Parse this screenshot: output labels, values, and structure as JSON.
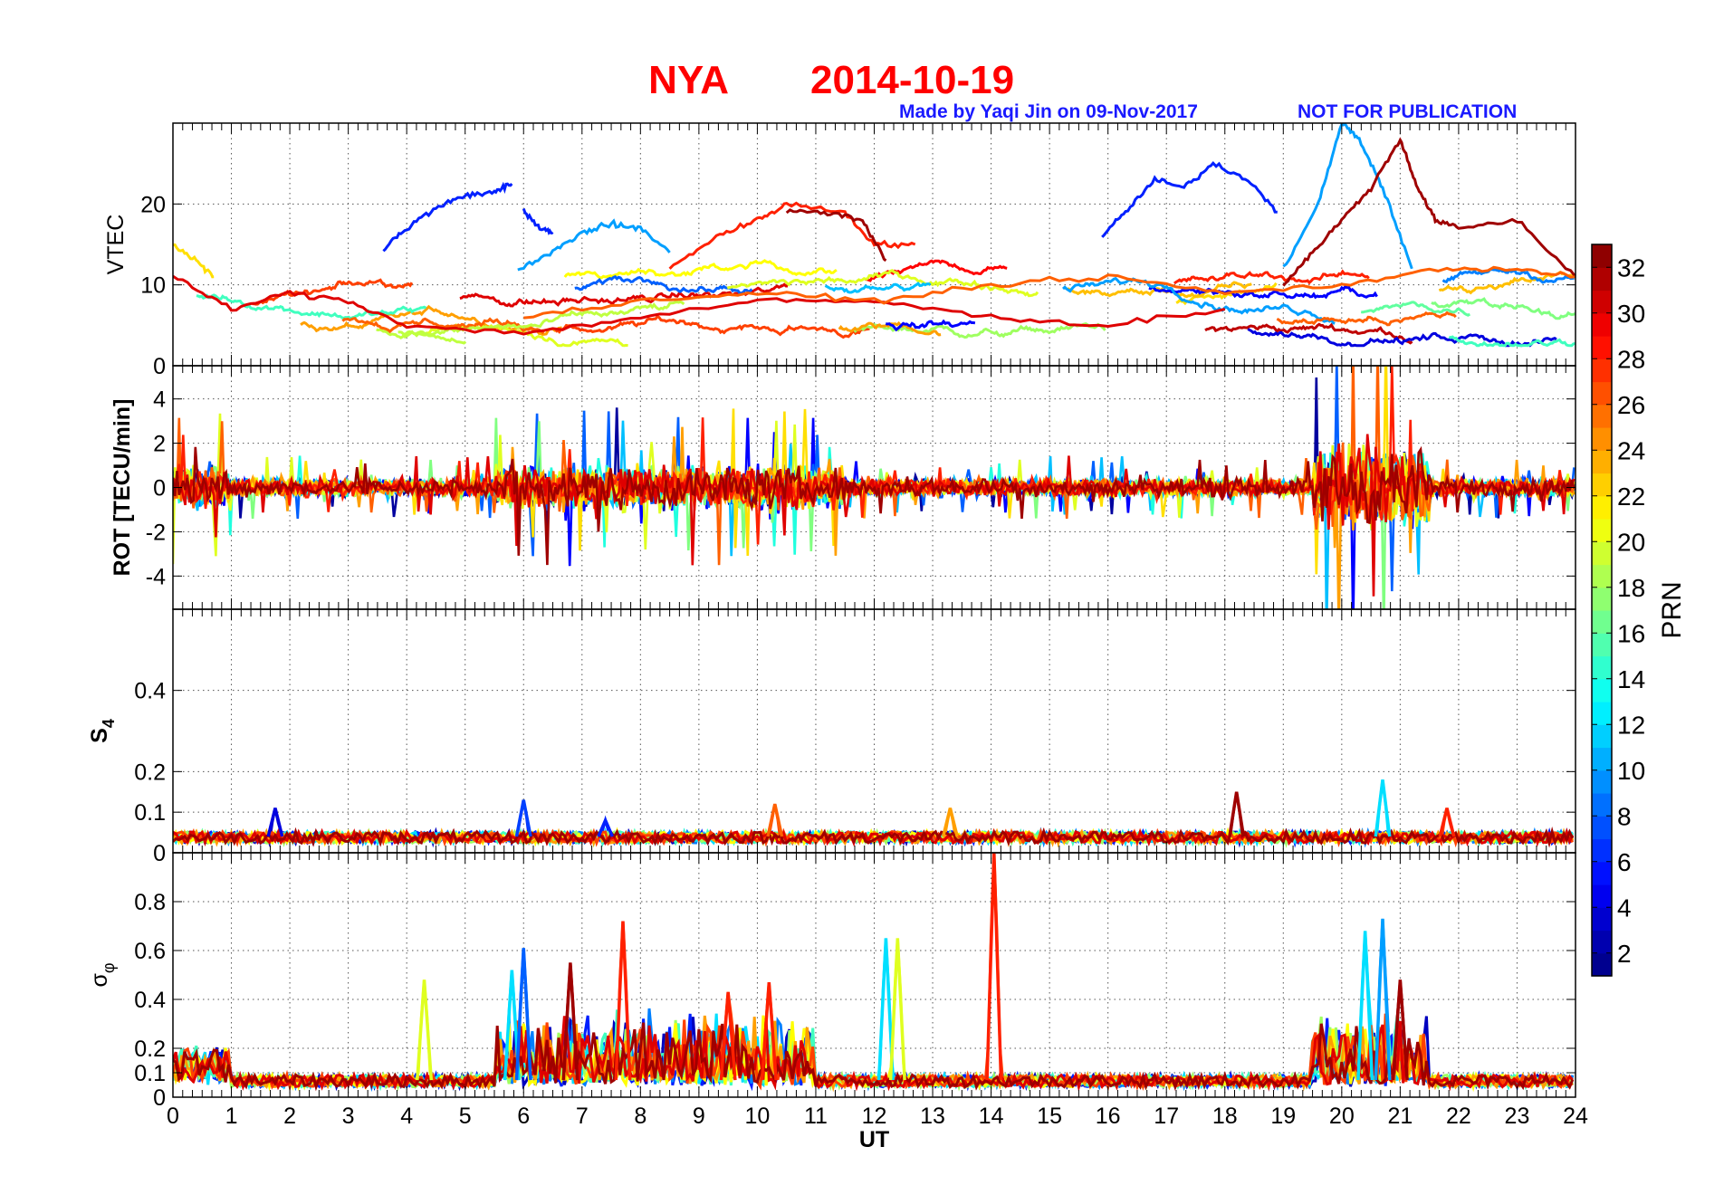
{
  "title": {
    "station": "NYA",
    "date": "2014-10-19",
    "color": "#ff0000"
  },
  "credit": {
    "made_by": "Made by Yaqi Jin on 09-Nov-2017",
    "notice": "NOT FOR PUBLICATION",
    "color": "#1a1aff"
  },
  "chart_data": [
    {
      "type": "line",
      "panel": "vtec",
      "ylabel": "VTEC",
      "xlim": [
        0,
        24
      ],
      "ylim": [
        0,
        30
      ],
      "yticks": [
        0,
        10,
        20
      ],
      "grid": true,
      "description_series": [
        {
          "prn": 6,
          "segments": [
            {
              "t": [
                3.6,
                4.0,
                4.5,
                5.0,
                5.5,
                5.8
              ],
              "v": [
                14.5,
                17,
                19.5,
                21,
                21.5,
                22.5
              ]
            },
            {
              "t": [
                6.0,
                6.3,
                6.5
              ],
              "v": [
                19,
                17,
                16.5
              ]
            }
          ]
        },
        {
          "prn": 6,
          "segments": [
            {
              "t": [
                15.9,
                16.3,
                16.8,
                17.3,
                17.8,
                18.4,
                18.9
              ],
              "v": [
                16,
                19,
                23,
                22,
                25,
                23,
                19
              ]
            }
          ]
        },
        {
          "prn": 10,
          "segments": [
            {
              "t": [
                5.9,
                6.5,
                7.0,
                7.5,
                8.0,
                8.5
              ],
              "v": [
                12,
                14,
                16.5,
                17.5,
                17,
                14
              ]
            }
          ]
        },
        {
          "prn": 10,
          "segments": [
            {
              "t": [
                19.0,
                19.6,
                20.0,
                20.3,
                20.7,
                21.2
              ],
              "v": [
                12,
                20,
                30,
                28,
                22,
                12
              ]
            }
          ]
        },
        {
          "prn": 28,
          "segments": [
            {
              "t": [
                8.5,
                9.3,
                10.0,
                10.5,
                11.5,
                12.0,
                12.7
              ],
              "v": [
                12,
                16,
                18,
                20,
                19,
                15,
                15
              ]
            }
          ]
        },
        {
          "prn": 32,
          "segments": [
            {
              "t": [
                10.5,
                11.2,
                11.8,
                12.2
              ],
              "v": [
                19,
                19,
                18,
                13
              ]
            }
          ]
        },
        {
          "prn": 32,
          "segments": [
            {
              "t": [
                19.0,
                19.5,
                20.0,
                20.5,
                21.0,
                21.3,
                21.6,
                22.0,
                23.0,
                24.0
              ],
              "v": [
                10,
                14,
                18,
                22,
                28,
                22,
                18,
                17,
                18,
                11
              ]
            }
          ]
        },
        {
          "prn": 22,
          "segments": [
            {
              "t": [
                0,
                0.4,
                0.7
              ],
              "v": [
                15,
                13,
                11
              ]
            }
          ]
        },
        {
          "prn": 30,
          "segments": [
            {
              "t": [
                0,
                1.0,
                2.0,
                3.0,
                4.0,
                6.0,
                8.0,
                10.0,
                12.0,
                14.0,
                16.0,
                18.0
              ],
              "v": [
                11,
                7,
                9,
                8,
                5,
                4,
                6,
                8,
                8,
                6,
                5,
                7
              ]
            }
          ]
        },
        {
          "prn": 26,
          "segments": [
            {
              "t": [
                6.0,
                8.0,
                10.0,
                12.0,
                14.0,
                16.0,
                18.0,
                20.0,
                21.8,
                23.0,
                24.0
              ],
              "v": [
                6,
                8,
                9,
                8,
                10,
                11,
                9,
                10,
                12,
                12,
                11
              ]
            }
          ]
        }
      ]
    },
    {
      "type": "line",
      "panel": "rot",
      "ylabel": "ROT [TECU/min]",
      "xlim": [
        0,
        24
      ],
      "ylim": [
        -5.5,
        5.5
      ],
      "yticks": [
        -4,
        -2,
        0,
        2,
        4
      ],
      "grid": true,
      "envelope": {
        "quiet_amplitude": 1.2,
        "active_intervals": [
          [
            0,
            1
          ],
          [
            5.5,
            11.5
          ],
          [
            19.5,
            21.5
          ]
        ],
        "active_amplitude": 5.5
      }
    },
    {
      "type": "line",
      "panel": "s4",
      "ylabel": "S4",
      "xlim": [
        0,
        24
      ],
      "ylim": [
        0,
        0.6
      ],
      "yticks": [
        0,
        0.1,
        0.2,
        0.4
      ],
      "ytick_labels": [
        "0",
        "0.1",
        "0.2",
        "0.4"
      ],
      "grid": true,
      "baseline": 0.04,
      "peaks": [
        {
          "t": 1.75,
          "v": 0.11,
          "prn": 4
        },
        {
          "t": 6.0,
          "v": 0.13,
          "prn": 7
        },
        {
          "t": 7.4,
          "v": 0.08,
          "prn": 6
        },
        {
          "t": 10.3,
          "v": 0.12,
          "prn": 26
        },
        {
          "t": 13.3,
          "v": 0.11,
          "prn": 24
        },
        {
          "t": 18.2,
          "v": 0.15,
          "prn": 32
        },
        {
          "t": 20.7,
          "v": 0.18,
          "prn": 12
        },
        {
          "t": 21.8,
          "v": 0.11,
          "prn": 28
        }
      ]
    },
    {
      "type": "line",
      "panel": "sigma_phi",
      "ylabel": "σφ",
      "xlabel": "UT",
      "xlim": [
        0,
        24
      ],
      "ylim": [
        0,
        1.0
      ],
      "yticks": [
        0,
        0.1,
        0.2,
        0.4,
        0.6,
        0.8
      ],
      "ytick_labels": [
        "0",
        "0.1",
        "0.2",
        "0.4",
        "0.6",
        "0.8"
      ],
      "xticks": [
        0,
        1,
        2,
        3,
        4,
        5,
        6,
        7,
        8,
        9,
        10,
        11,
        12,
        13,
        14,
        15,
        16,
        17,
        18,
        19,
        20,
        21,
        22,
        23,
        24
      ],
      "grid": true,
      "baseline": 0.07,
      "peaks": [
        {
          "t": 4.3,
          "v": 0.48,
          "prn": 20
        },
        {
          "t": 5.8,
          "v": 0.52,
          "prn": 12
        },
        {
          "t": 6.0,
          "v": 0.61,
          "prn": 8
        },
        {
          "t": 6.8,
          "v": 0.55,
          "prn": 32
        },
        {
          "t": 7.7,
          "v": 0.72,
          "prn": 28
        },
        {
          "t": 9.5,
          "v": 0.43,
          "prn": 28
        },
        {
          "t": 10.2,
          "v": 0.47,
          "prn": 28
        },
        {
          "t": 12.2,
          "v": 0.65,
          "prn": 12
        },
        {
          "t": 12.4,
          "v": 0.65,
          "prn": 20
        },
        {
          "t": 14.05,
          "v": 1.0,
          "prn": 28
        },
        {
          "t": 20.4,
          "v": 0.68,
          "prn": 12
        },
        {
          "t": 20.7,
          "v": 0.73,
          "prn": 10
        },
        {
          "t": 21.0,
          "v": 0.48,
          "prn": 32
        }
      ]
    }
  ],
  "colorbar": {
    "label": "PRN",
    "range": [
      1,
      33
    ],
    "tick_values": [
      2,
      4,
      6,
      8,
      10,
      12,
      14,
      16,
      18,
      20,
      22,
      24,
      26,
      28,
      30,
      32
    ],
    "colormap": "jet"
  }
}
